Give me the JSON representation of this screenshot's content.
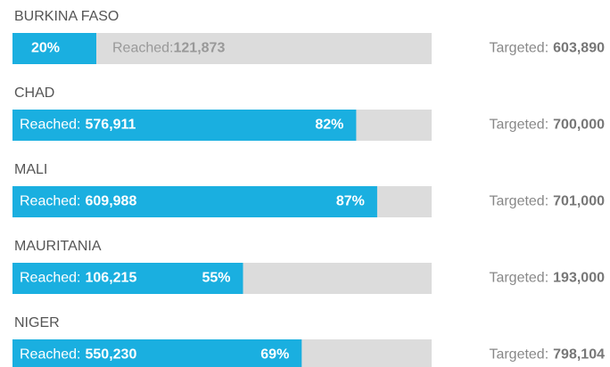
{
  "chart_data": {
    "type": "progress",
    "categories": [
      "BURKINA FASO",
      "CHAD",
      "MALI",
      "MAURITANIA",
      "NIGER"
    ],
    "series": [
      {
        "name": "Reached:",
        "values": [
          121873,
          576911,
          609988,
          106215,
          550230
        ],
        "value_labels": [
          "121,873",
          "576,911",
          "609,988",
          "106,215",
          "550,230"
        ]
      },
      {
        "name": "Targeted:",
        "values": [
          603890,
          700000,
          701000,
          193000,
          798104
        ],
        "value_labels": [
          "603,890",
          "700,000",
          "701,000",
          "193,000",
          "798,104"
        ]
      }
    ],
    "percent": {
      "values": [
        20,
        82,
        87,
        55,
        69
      ],
      "value_labels": [
        "20%",
        "82%",
        "87%",
        "55%",
        "69%"
      ]
    },
    "xlim": [
      0,
      100
    ],
    "color": "#1aafe0",
    "track_color": "#dcdcdc"
  }
}
